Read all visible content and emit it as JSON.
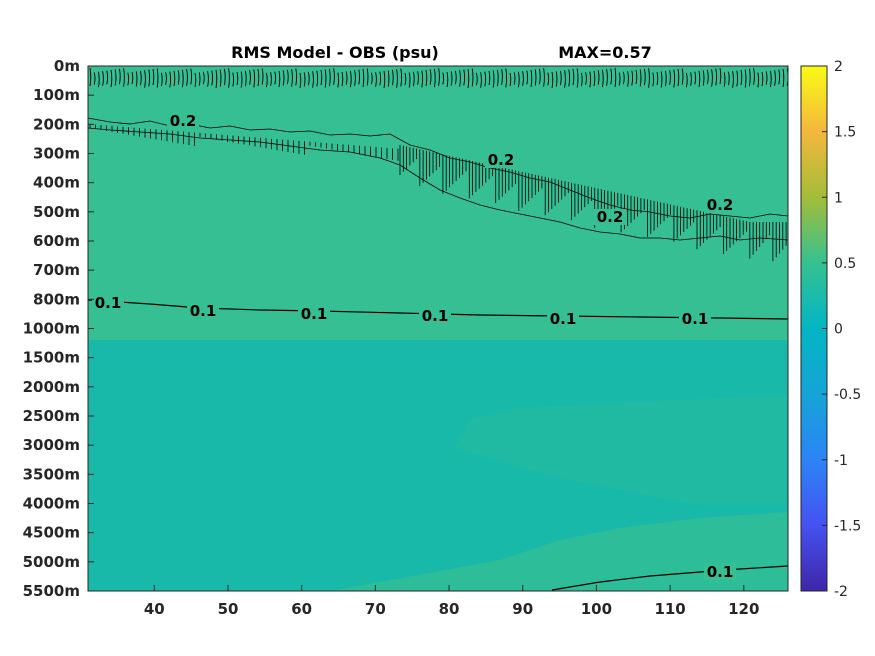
{
  "chart_data": {
    "type": "heatmap",
    "title": "RMS Model - OBS (psu)",
    "max_label": "MAX=0.57",
    "xlabel": "",
    "ylabel": "",
    "x_ticks": [
      "40",
      "50",
      "60",
      "70",
      "80",
      "90",
      "100",
      "110",
      "120"
    ],
    "x_tick_values": [
      40,
      50,
      60,
      70,
      80,
      90,
      100,
      110,
      120
    ],
    "xlim": [
      31,
      126
    ],
    "y_ticks": [
      "0m",
      "100m",
      "200m",
      "300m",
      "400m",
      "500m",
      "600m",
      "700m",
      "800m",
      "1000m",
      "1500m",
      "2000m",
      "2500m",
      "3000m",
      "3500m",
      "4000m",
      "4500m",
      "5000m",
      "5500m"
    ],
    "colorbar": {
      "ticks": [
        "2",
        "1.5",
        "1",
        "0.5",
        "0",
        "-0.5",
        "-1",
        "-1.5",
        "-2"
      ],
      "tick_values": [
        2,
        1.5,
        1,
        0.5,
        0,
        -0.5,
        -1,
        -1.5,
        -2
      ],
      "range": [
        -2,
        2
      ],
      "colormap": "parula"
    },
    "field_colors": {
      "upper": "#36bf93",
      "deep": "#19b9a9",
      "bottom": "#2dbd98"
    },
    "contour_labels": [
      {
        "text": "0.1",
        "x": 33,
        "depth": "~850m"
      },
      {
        "text": "0.1",
        "x": 47,
        "depth": "~870m"
      },
      {
        "text": "0.1",
        "x": 62,
        "depth": "~870m"
      },
      {
        "text": "0.1",
        "x": 80,
        "depth": "~880m"
      },
      {
        "text": "0.1",
        "x": 97,
        "depth": "~880m"
      },
      {
        "text": "0.1",
        "x": 115,
        "depth": "~880m"
      },
      {
        "text": "0.1",
        "x": 117,
        "depth": "~5150m"
      },
      {
        "text": "0.2",
        "x": 44,
        "depth": "~200m"
      },
      {
        "text": "0.2",
        "x": 94,
        "depth": "~350m"
      },
      {
        "text": "0.2",
        "x": 105,
        "depth": "~530m"
      },
      {
        "text": "0.2",
        "x": 111,
        "depth": "~450m"
      }
    ]
  }
}
